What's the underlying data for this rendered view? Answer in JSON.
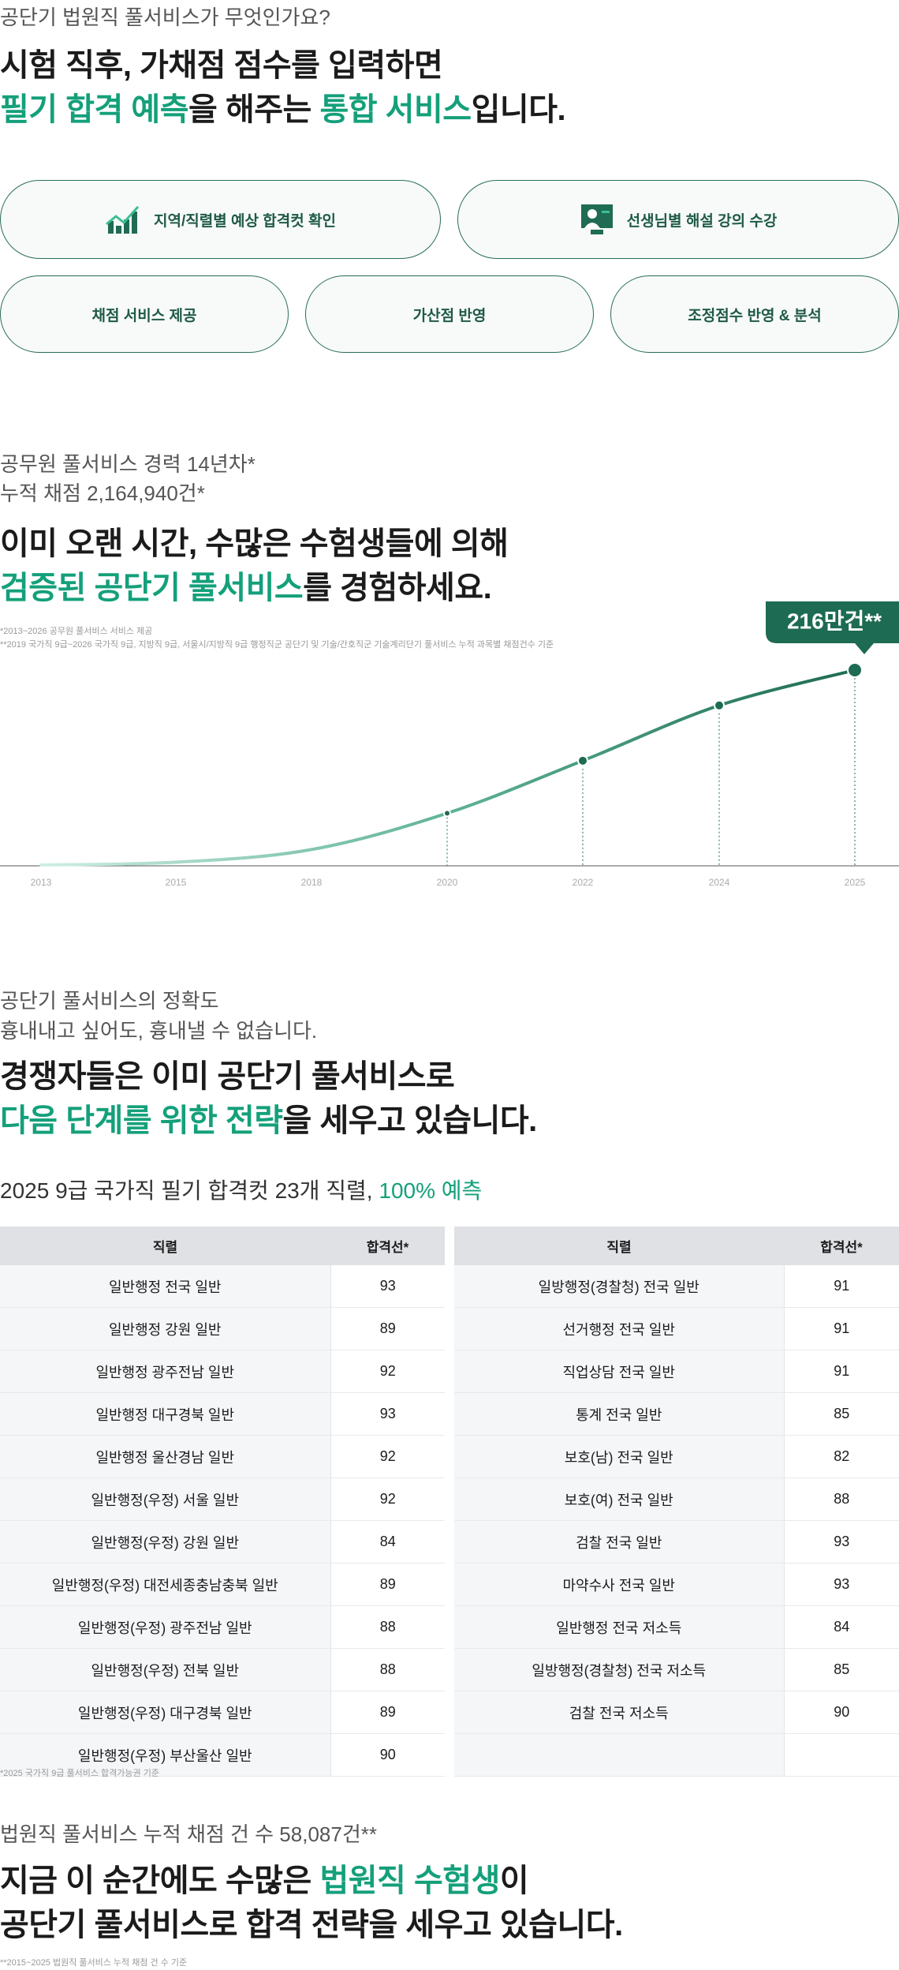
{
  "intro": {
    "question": "공단기 법원직 풀서비스가 무엇인가요?",
    "headline": [
      [
        {
          "text": "시험 직후, 가채점 점수를 입력하면"
        }
      ],
      [
        {
          "text": "필기 합격 예측",
          "highlight": true
        },
        {
          "text": "을 해주는 "
        },
        {
          "text": "통합 서비스",
          "highlight": true
        },
        {
          "text": "입니다."
        }
      ]
    ]
  },
  "features": [
    "지역/직렬별 예상 합격컷 확인",
    "선생님별 해설 강의 수강",
    "채점 서비스 제공",
    "가산점 반영",
    "조정점수 반영 & 분석"
  ],
  "history": {
    "lines": [
      "공무원 풀서비스 경력 14년차*",
      "누적 채점 2,164,940건*"
    ],
    "headline": [
      [
        {
          "text": "이미 오랜 시간, 수많은 수험생들에 의해"
        }
      ],
      [
        {
          "text": "검증된 공단기 풀서비스",
          "highlight": true
        },
        {
          "text": "를 경험하세요."
        }
      ]
    ],
    "notes": [
      "*2013~2026 공무원 풀서비스 서비스 제공",
      "**2019 국가직 9급~2026 국가직 9급, 지방직 9급, 서울시/지방직 9급 행정직군 공단기 및 기술/간호직군 기술계리단기 풀서비스 누적 과목별 채점건수 기준"
    ]
  },
  "chart_data": {
    "type": "line",
    "categories": [
      "2013",
      "2015",
      "2018",
      "2020",
      "2022",
      "2024",
      "2025"
    ],
    "values": [
      1,
      4,
      18,
      58,
      116,
      177,
      216
    ],
    "markers": [
      false,
      false,
      false,
      true,
      true,
      true,
      true
    ],
    "color": "#1d6b52",
    "annotation": "216만건**"
  },
  "accuracy": {
    "lines": [
      "공단기 풀서비스의 정확도",
      "흉내내고 싶어도, 흉내낼 수 없습니다."
    ],
    "headline": [
      [
        {
          "text": "경쟁자들은 이미 공단기 풀서비스로"
        }
      ],
      [
        {
          "text": "다음 단계를 위한 전략",
          "highlight": true
        },
        {
          "text": "을 세우고 있습니다."
        }
      ]
    ],
    "summary": [
      {
        "text": "2025 9급 국가직 필기 합격컷 23개 직렬, "
      },
      {
        "text": "100% 예측",
        "highlight": true
      }
    ],
    "tables": [
      {
        "headers": [
          "직렬",
          "합격선*"
        ],
        "rows": [
          [
            "일반행정 전국 일반",
            93
          ],
          [
            "일반행정 강원 일반",
            89
          ],
          [
            "일반행정 광주전남 일반",
            92
          ],
          [
            "일반행정 대구경북 일반",
            93
          ],
          [
            "일반행정 울산경남 일반",
            92
          ],
          [
            "일반행정(우정) 서울 일반",
            92
          ],
          [
            "일반행정(우정) 강원 일반",
            84
          ],
          [
            "일반행정(우정) 대전세종충남충북 일반",
            89
          ],
          [
            "일반행정(우정) 광주전남 일반",
            88
          ],
          [
            "일반행정(우정) 전북 일반",
            88
          ],
          [
            "일반행정(우정) 대구경북 일반",
            89
          ],
          [
            "일반행정(우정) 부산울산 일반",
            90
          ]
        ]
      },
      {
        "headers": [
          "직렬",
          "합격선*"
        ],
        "rows": [
          [
            "일방행정(경찰청) 전국 일반",
            91
          ],
          [
            "선거행정 전국 일반",
            91
          ],
          [
            "직업상담 전국 일반",
            91
          ],
          [
            "통계 전국 일반",
            85
          ],
          [
            "보호(남) 전국 일반",
            82
          ],
          [
            "보호(여) 전국 일반",
            88
          ],
          [
            "검찰 전국 일반",
            93
          ],
          [
            "마약수사 전국 일반",
            93
          ],
          [
            "일반행정 전국 저소득",
            84
          ],
          [
            "일방행정(경찰청) 전국 저소득",
            85
          ],
          [
            "검찰 전국 저소득",
            90
          ]
        ]
      }
    ],
    "note": "*2025 국가직 9급 풀서비스 합격가능권 기준"
  },
  "court": {
    "line": "법원직 풀서비스 누적 채점 건 수 58,087건**",
    "headline": [
      [
        {
          "text": "지금 이 순간에도 수많은 "
        },
        {
          "text": "법원직 수험생",
          "highlight": true
        },
        {
          "text": "이"
        }
      ],
      [
        {
          "text": "공단기 풀서비스로 합격 전략을 세우고 있습니다."
        }
      ]
    ],
    "note": "**2015~2025 법원직 풀서비스 누적 채점 건 수 기준"
  }
}
